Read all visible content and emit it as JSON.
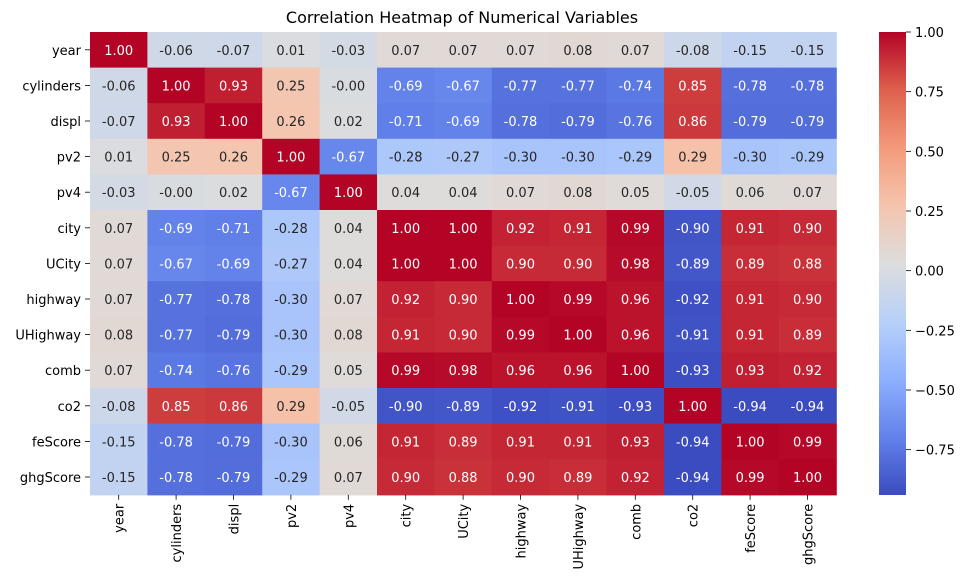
{
  "chart_data": {
    "type": "heatmap",
    "title": "Correlation Heatmap of Numerical Variables",
    "xlabel": "",
    "ylabel": "",
    "colormap": "coolwarm",
    "vmin": -0.94,
    "vmax": 1.0,
    "colorbar_ticks": [
      1.0,
      0.75,
      0.5,
      0.25,
      0.0,
      -0.25,
      -0.5,
      -0.75
    ],
    "colorbar_tick_labels": [
      "1.00",
      "0.75",
      "0.50",
      "0.25",
      "0.00",
      "−0.25",
      "−0.50",
      "−0.75"
    ],
    "categories": [
      "year",
      "cylinders",
      "displ",
      "pv2",
      "pv4",
      "city",
      "UCity",
      "highway",
      "UHighway",
      "comb",
      "co2",
      "feScore",
      "ghgScore"
    ],
    "values": [
      [
        1.0,
        -0.06,
        -0.07,
        0.01,
        -0.03,
        0.07,
        0.07,
        0.07,
        0.08,
        0.07,
        -0.08,
        -0.15,
        -0.15
      ],
      [
        -0.06,
        1.0,
        0.93,
        0.25,
        -0.0,
        -0.69,
        -0.67,
        -0.77,
        -0.77,
        -0.74,
        0.85,
        -0.78,
        -0.78
      ],
      [
        -0.07,
        0.93,
        1.0,
        0.26,
        0.02,
        -0.71,
        -0.69,
        -0.78,
        -0.79,
        -0.76,
        0.86,
        -0.79,
        -0.79
      ],
      [
        0.01,
        0.25,
        0.26,
        1.0,
        -0.67,
        -0.28,
        -0.27,
        -0.3,
        -0.3,
        -0.29,
        0.29,
        -0.3,
        -0.29
      ],
      [
        -0.03,
        -0.0,
        0.02,
        -0.67,
        1.0,
        0.04,
        0.04,
        0.07,
        0.08,
        0.05,
        -0.05,
        0.06,
        0.07
      ],
      [
        0.07,
        -0.69,
        -0.71,
        -0.28,
        0.04,
        1.0,
        1.0,
        0.92,
        0.91,
        0.99,
        -0.9,
        0.91,
        0.9
      ],
      [
        0.07,
        -0.67,
        -0.69,
        -0.27,
        0.04,
        1.0,
        1.0,
        0.9,
        0.9,
        0.98,
        -0.89,
        0.89,
        0.88
      ],
      [
        0.07,
        -0.77,
        -0.78,
        -0.3,
        0.07,
        0.92,
        0.9,
        1.0,
        0.99,
        0.96,
        -0.92,
        0.91,
        0.9
      ],
      [
        0.08,
        -0.77,
        -0.79,
        -0.3,
        0.08,
        0.91,
        0.9,
        0.99,
        1.0,
        0.96,
        -0.91,
        0.91,
        0.89
      ],
      [
        0.07,
        -0.74,
        -0.76,
        -0.29,
        0.05,
        0.99,
        0.98,
        0.96,
        0.96,
        1.0,
        -0.93,
        0.93,
        0.92
      ],
      [
        -0.08,
        0.85,
        0.86,
        0.29,
        -0.05,
        -0.9,
        -0.89,
        -0.92,
        -0.91,
        -0.93,
        1.0,
        -0.94,
        -0.94
      ],
      [
        -0.15,
        -0.78,
        -0.79,
        -0.3,
        0.06,
        0.91,
        0.89,
        0.91,
        0.91,
        0.93,
        -0.94,
        1.0,
        0.99
      ],
      [
        -0.15,
        -0.78,
        -0.79,
        -0.29,
        0.07,
        0.9,
        0.88,
        0.9,
        0.89,
        0.92,
        -0.94,
        0.99,
        1.0
      ]
    ],
    "cell_labels": [
      [
        "1.00",
        "-0.06",
        "-0.07",
        "0.01",
        "-0.03",
        "0.07",
        "0.07",
        "0.07",
        "0.08",
        "0.07",
        "-0.08",
        "-0.15",
        "-0.15"
      ],
      [
        "-0.06",
        "1.00",
        "0.93",
        "0.25",
        "-0.00",
        "-0.69",
        "-0.67",
        "-0.77",
        "-0.77",
        "-0.74",
        "0.85",
        "-0.78",
        "-0.78"
      ],
      [
        "-0.07",
        "0.93",
        "1.00",
        "0.26",
        "0.02",
        "-0.71",
        "-0.69",
        "-0.78",
        "-0.79",
        "-0.76",
        "0.86",
        "-0.79",
        "-0.79"
      ],
      [
        "0.01",
        "0.25",
        "0.26",
        "1.00",
        "-0.67",
        "-0.28",
        "-0.27",
        "-0.30",
        "-0.30",
        "-0.29",
        "0.29",
        "-0.30",
        "-0.29"
      ],
      [
        "-0.03",
        "-0.00",
        "0.02",
        "-0.67",
        "1.00",
        "0.04",
        "0.04",
        "0.07",
        "0.08",
        "0.05",
        "-0.05",
        "0.06",
        "0.07"
      ],
      [
        "0.07",
        "-0.69",
        "-0.71",
        "-0.28",
        "0.04",
        "1.00",
        "1.00",
        "0.92",
        "0.91",
        "0.99",
        "-0.90",
        "0.91",
        "0.90"
      ],
      [
        "0.07",
        "-0.67",
        "-0.69",
        "-0.27",
        "0.04",
        "1.00",
        "1.00",
        "0.90",
        "0.90",
        "0.98",
        "-0.89",
        "0.89",
        "0.88"
      ],
      [
        "0.07",
        "-0.77",
        "-0.78",
        "-0.30",
        "0.07",
        "0.92",
        "0.90",
        "1.00",
        "0.99",
        "0.96",
        "-0.92",
        "0.91",
        "0.90"
      ],
      [
        "0.08",
        "-0.77",
        "-0.79",
        "-0.30",
        "0.08",
        "0.91",
        "0.90",
        "0.99",
        "1.00",
        "0.96",
        "-0.91",
        "0.91",
        "0.89"
      ],
      [
        "0.07",
        "-0.74",
        "-0.76",
        "-0.29",
        "0.05",
        "0.99",
        "0.98",
        "0.96",
        "0.96",
        "1.00",
        "-0.93",
        "0.93",
        "0.92"
      ],
      [
        "-0.08",
        "0.85",
        "0.86",
        "0.29",
        "-0.05",
        "-0.90",
        "-0.89",
        "-0.92",
        "-0.91",
        "-0.93",
        "1.00",
        "-0.94",
        "-0.94"
      ],
      [
        "-0.15",
        "-0.78",
        "-0.79",
        "-0.30",
        "0.06",
        "0.91",
        "0.89",
        "0.91",
        "0.91",
        "0.93",
        "-0.94",
        "1.00",
        "0.99"
      ],
      [
        "-0.15",
        "-0.78",
        "-0.79",
        "-0.29",
        "0.07",
        "0.90",
        "0.88",
        "0.90",
        "0.89",
        "0.92",
        "-0.94",
        "0.99",
        "1.00"
      ]
    ],
    "legend": "colorbar-right",
    "grid": false
  }
}
